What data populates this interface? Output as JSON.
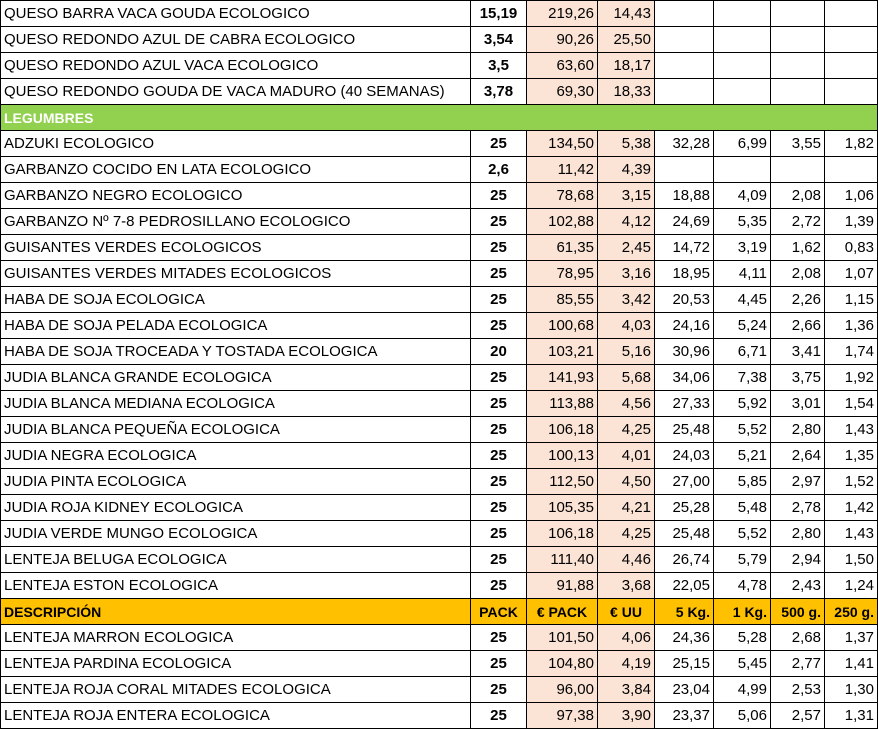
{
  "rows": [
    {
      "type": "item",
      "name": "QUESO BARRA VACA GOUDA ECOLOGICO",
      "pack": "15,19",
      "eur_pack": "219,26",
      "eur_uu": "14,43",
      "kg5": "",
      "kg1": "",
      "g500": "",
      "g250": ""
    },
    {
      "type": "item",
      "name": "QUESO REDONDO AZUL DE CABRA ECOLOGICO",
      "pack": "3,54",
      "eur_pack": "90,26",
      "eur_uu": "25,50",
      "kg5": "",
      "kg1": "",
      "g500": "",
      "g250": ""
    },
    {
      "type": "item",
      "name": "QUESO REDONDO AZUL VACA ECOLOGICO",
      "pack": "3,5",
      "eur_pack": "63,60",
      "eur_uu": "18,17",
      "kg5": "",
      "kg1": "",
      "g500": "",
      "g250": ""
    },
    {
      "type": "item",
      "name": "QUESO REDONDO GOUDA DE VACA MADURO (40 SEMANAS)",
      "pack": "3,78",
      "eur_pack": "69,30",
      "eur_uu": "18,33",
      "kg5": "",
      "kg1": "",
      "g500": "",
      "g250": ""
    },
    {
      "type": "category",
      "name": "LEGUMBRES"
    },
    {
      "type": "item",
      "name": "ADZUKI ECOLOGICO",
      "pack": "25",
      "eur_pack": "134,50",
      "eur_uu": "5,38",
      "kg5": "32,28",
      "kg1": "6,99",
      "g500": "3,55",
      "g250": "1,82"
    },
    {
      "type": "item",
      "name": "GARBANZO COCIDO EN LATA ECOLOGICO",
      "pack": "2,6",
      "eur_pack": "11,42",
      "eur_uu": "4,39",
      "kg5": "",
      "kg1": "",
      "g500": "",
      "g250": ""
    },
    {
      "type": "item",
      "name": "GARBANZO NEGRO ECOLOGICO",
      "pack": "25",
      "eur_pack": "78,68",
      "eur_uu": "3,15",
      "kg5": "18,88",
      "kg1": "4,09",
      "g500": "2,08",
      "g250": "1,06"
    },
    {
      "type": "item",
      "name": "GARBANZO Nº 7-8 PEDROSILLANO ECOLOGICO",
      "pack": "25",
      "eur_pack": "102,88",
      "eur_uu": "4,12",
      "kg5": "24,69",
      "kg1": "5,35",
      "g500": "2,72",
      "g250": "1,39"
    },
    {
      "type": "item",
      "name": "GUISANTES  VERDES ECOLOGICOS",
      "pack": "25",
      "eur_pack": "61,35",
      "eur_uu": "2,45",
      "kg5": "14,72",
      "kg1": "3,19",
      "g500": "1,62",
      "g250": "0,83"
    },
    {
      "type": "item",
      "name": "GUISANTES VERDES MITADES ECOLOGICOS",
      "pack": "25",
      "eur_pack": "78,95",
      "eur_uu": "3,16",
      "kg5": "18,95",
      "kg1": "4,11",
      "g500": "2,08",
      "g250": "1,07"
    },
    {
      "type": "item",
      "name": "HABA DE SOJA ECOLOGICA",
      "pack": "25",
      "eur_pack": "85,55",
      "eur_uu": "3,42",
      "kg5": "20,53",
      "kg1": "4,45",
      "g500": "2,26",
      "g250": "1,15"
    },
    {
      "type": "item",
      "name": "HABA DE SOJA PELADA ECOLOGICA",
      "pack": "25",
      "eur_pack": "100,68",
      "eur_uu": "4,03",
      "kg5": "24,16",
      "kg1": "5,24",
      "g500": "2,66",
      "g250": "1,36"
    },
    {
      "type": "item",
      "name": "HABA DE SOJA TROCEADA Y TOSTADA ECOLOGICA",
      "pack": "20",
      "eur_pack": "103,21",
      "eur_uu": "5,16",
      "kg5": "30,96",
      "kg1": "6,71",
      "g500": "3,41",
      "g250": "1,74"
    },
    {
      "type": "item",
      "name": "JUDIA BLANCA GRANDE ECOLOGICA",
      "pack": "25",
      "eur_pack": "141,93",
      "eur_uu": "5,68",
      "kg5": "34,06",
      "kg1": "7,38",
      "g500": "3,75",
      "g250": "1,92"
    },
    {
      "type": "item",
      "name": "JUDIA BLANCA MEDIANA ECOLOGICA",
      "pack": "25",
      "eur_pack": "113,88",
      "eur_uu": "4,56",
      "kg5": "27,33",
      "kg1": "5,92",
      "g500": "3,01",
      "g250": "1,54"
    },
    {
      "type": "item",
      "name": "JUDIA BLANCA PEQUEÑA ECOLOGICA",
      "pack": "25",
      "eur_pack": "106,18",
      "eur_uu": "4,25",
      "kg5": "25,48",
      "kg1": "5,52",
      "g500": "2,80",
      "g250": "1,43"
    },
    {
      "type": "item",
      "name": "JUDIA NEGRA ECOLOGICA",
      "pack": "25",
      "eur_pack": "100,13",
      "eur_uu": "4,01",
      "kg5": "24,03",
      "kg1": "5,21",
      "g500": "2,64",
      "g250": "1,35"
    },
    {
      "type": "item",
      "name": "JUDIA PINTA ECOLOGICA",
      "pack": "25",
      "eur_pack": "112,50",
      "eur_uu": "4,50",
      "kg5": "27,00",
      "kg1": "5,85",
      "g500": "2,97",
      "g250": "1,52"
    },
    {
      "type": "item",
      "name": "JUDIA ROJA KIDNEY ECOLOGICA",
      "pack": "25",
      "eur_pack": "105,35",
      "eur_uu": "4,21",
      "kg5": "25,28",
      "kg1": "5,48",
      "g500": "2,78",
      "g250": "1,42"
    },
    {
      "type": "item",
      "name": "JUDIA VERDE MUNGO ECOLOGICA",
      "pack": "25",
      "eur_pack": "106,18",
      "eur_uu": "4,25",
      "kg5": "25,48",
      "kg1": "5,52",
      "g500": "2,80",
      "g250": "1,43"
    },
    {
      "type": "item",
      "name": "LENTEJA BELUGA ECOLOGICA",
      "pack": "25",
      "eur_pack": "111,40",
      "eur_uu": "4,46",
      "kg5": "26,74",
      "kg1": "5,79",
      "g500": "2,94",
      "g250": "1,50"
    },
    {
      "type": "item",
      "name": "LENTEJA ESTON ECOLOGICA",
      "pack": "25",
      "eur_pack": "91,88",
      "eur_uu": "3,68",
      "kg5": "22,05",
      "kg1": "4,78",
      "g500": "2,43",
      "g250": "1,24"
    },
    {
      "type": "header",
      "name": "DESCRIPCIÓN",
      "pack": "PACK",
      "eur_pack": "€ PACK",
      "eur_uu": "€ UU",
      "kg5": "5 Kg.",
      "kg1": "1 Kg.",
      "g500": "500 g.",
      "g250": "250 g."
    },
    {
      "type": "item",
      "name": "LENTEJA MARRON ECOLOGICA",
      "pack": "25",
      "eur_pack": "101,50",
      "eur_uu": "4,06",
      "kg5": "24,36",
      "kg1": "5,28",
      "g500": "2,68",
      "g250": "1,37"
    },
    {
      "type": "item",
      "name": "LENTEJA PARDINA ECOLOGICA",
      "pack": "25",
      "eur_pack": "104,80",
      "eur_uu": "4,19",
      "kg5": "25,15",
      "kg1": "5,45",
      "g500": "2,77",
      "g250": "1,41"
    },
    {
      "type": "item",
      "name": "LENTEJA ROJA CORAL MITADES ECOLOGICA",
      "pack": "25",
      "eur_pack": "96,00",
      "eur_uu": "3,84",
      "kg5": "23,04",
      "kg1": "4,99",
      "g500": "2,53",
      "g250": "1,30"
    },
    {
      "type": "item",
      "name": "LENTEJA ROJA ENTERA ECOLOGICA",
      "pack": "25",
      "eur_pack": "97,38",
      "eur_uu": "3,90",
      "kg5": "23,37",
      "kg1": "5,06",
      "g500": "2,57",
      "g250": "1,31"
    }
  ]
}
